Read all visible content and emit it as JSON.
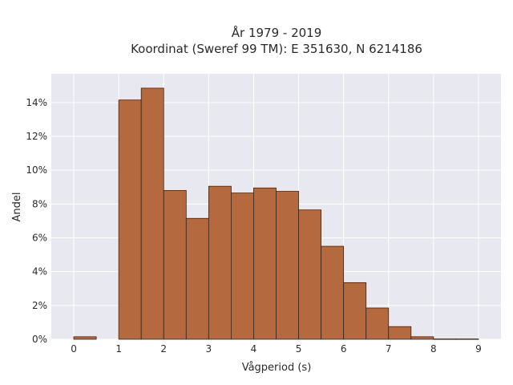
{
  "chart_data": {
    "type": "bar",
    "title_line1": "År 1979 - 2019",
    "title_line2": "Koordinat (Sweref 99 TM): E 351630, N 6214186",
    "xlabel": "Vågperiod (s)",
    "ylabel": "Andel",
    "bin_width": 0.5,
    "bins": [
      {
        "x0": 0.0,
        "value": 0.15
      },
      {
        "x0": 0.5,
        "value": 0.0
      },
      {
        "x0": 1.0,
        "value": 14.15
      },
      {
        "x0": 1.5,
        "value": 14.85
      },
      {
        "x0": 2.0,
        "value": 8.8
      },
      {
        "x0": 2.5,
        "value": 7.15
      },
      {
        "x0": 3.0,
        "value": 9.05
      },
      {
        "x0": 3.5,
        "value": 8.65
      },
      {
        "x0": 4.0,
        "value": 8.95
      },
      {
        "x0": 4.5,
        "value": 8.75
      },
      {
        "x0": 5.0,
        "value": 7.65
      },
      {
        "x0": 5.5,
        "value": 5.5
      },
      {
        "x0": 6.0,
        "value": 3.35
      },
      {
        "x0": 6.5,
        "value": 1.85
      },
      {
        "x0": 7.0,
        "value": 0.75
      },
      {
        "x0": 7.5,
        "value": 0.15
      },
      {
        "x0": 8.0,
        "value": 0.02
      },
      {
        "x0": 8.5,
        "value": 0.02
      }
    ],
    "xlim": [
      -0.5,
      9.5
    ],
    "ylim": [
      0,
      15.7
    ],
    "xticks": [
      0,
      1,
      2,
      3,
      4,
      5,
      6,
      7,
      8,
      9
    ],
    "yticks": [
      0,
      2,
      4,
      6,
      8,
      10,
      12,
      14
    ],
    "ytick_labels": [
      "0%",
      "2%",
      "4%",
      "6%",
      "8%",
      "10%",
      "12%",
      "14%"
    ],
    "bar_color": "#b5693f",
    "bar_edge_color": "#3b2418",
    "plot_background": "#e8e8f0",
    "grid": true,
    "grid_color": "#ffffff"
  }
}
